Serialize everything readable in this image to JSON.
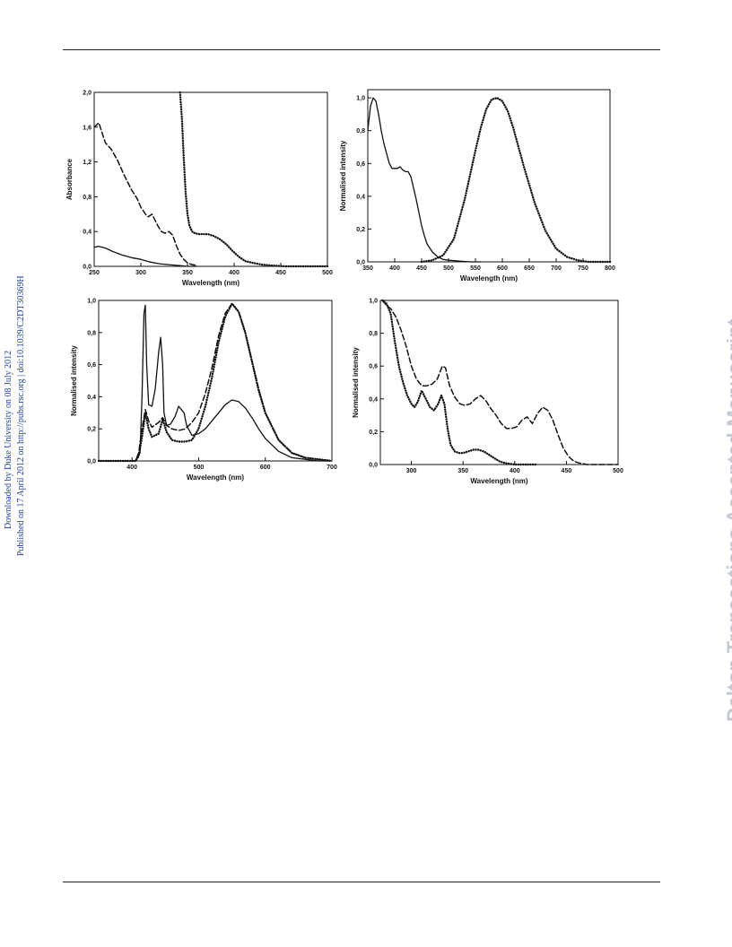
{
  "side_notes": {
    "line1": "Downloaded by Duke University on 08 July 2012",
    "line2": "Published on 17 April 2012 on http://pubs.rsc.org | doi:10.1039/C2DT30369H"
  },
  "watermark": "Dalton Transactions Accepted Manuscript",
  "chart_data": [
    {
      "type": "line",
      "xlabel": "Wavelength (nm)",
      "ylabel": "Absorbance",
      "xlim": [
        250,
        500
      ],
      "ylim": [
        0,
        2.0
      ],
      "xticks": [
        250,
        300,
        350,
        400,
        450,
        500
      ],
      "yticks": [
        0.0,
        0.4,
        0.8,
        1.2,
        1.6,
        2.0
      ],
      "yticklabels": [
        "0,0",
        "0,4",
        "0,8",
        "1,2",
        "1,6",
        "2,0"
      ],
      "grid": false,
      "series": [
        {
          "style": "dashed",
          "x": [
            250,
            255,
            258,
            262,
            268,
            275,
            282,
            290,
            296,
            300,
            305,
            308,
            312,
            318,
            322,
            326,
            330,
            334,
            338,
            342,
            346,
            350,
            355,
            360
          ],
          "y": [
            1.6,
            1.65,
            1.55,
            1.42,
            1.35,
            1.22,
            1.05,
            0.88,
            0.78,
            0.68,
            0.6,
            0.57,
            0.6,
            0.47,
            0.4,
            0.38,
            0.4,
            0.36,
            0.24,
            0.14,
            0.08,
            0.04,
            0.02,
            0.01
          ]
        },
        {
          "style": "solid",
          "x": [
            250,
            255,
            262,
            270,
            280,
            290,
            300,
            310,
            320,
            330,
            340,
            350,
            360
          ],
          "y": [
            0.22,
            0.23,
            0.21,
            0.17,
            0.13,
            0.1,
            0.08,
            0.05,
            0.03,
            0.02,
            0.01,
            0.0,
            0.0
          ]
        },
        {
          "style": "dotted",
          "x": [
            342,
            344,
            346,
            348,
            350,
            352,
            355,
            358,
            362,
            366,
            372,
            378,
            385,
            392,
            398,
            405,
            412,
            420,
            430,
            440,
            455,
            470,
            485,
            500
          ],
          "y": [
            2.0,
            1.7,
            1.25,
            0.85,
            0.6,
            0.47,
            0.4,
            0.38,
            0.37,
            0.37,
            0.37,
            0.35,
            0.31,
            0.25,
            0.18,
            0.11,
            0.06,
            0.04,
            0.02,
            0.01,
            0.0,
            0.0,
            0.0,
            0.0
          ]
        }
      ]
    },
    {
      "type": "line",
      "xlabel": "Wavelength (nm)",
      "ylabel": "Normalised intensity",
      "xlim": [
        350,
        800
      ],
      "ylim": [
        0,
        1.05
      ],
      "xticks": [
        350,
        400,
        450,
        500,
        550,
        600,
        650,
        700,
        750,
        800
      ],
      "yticks": [
        0.0,
        0.2,
        0.4,
        0.6,
        0.8,
        1.0
      ],
      "yticklabels": [
        "0,0",
        "0,2",
        "0,4",
        "0,6",
        "0,8",
        "1,0"
      ],
      "grid": false,
      "series": [
        {
          "style": "solid",
          "x": [
            350,
            355,
            360,
            365,
            370,
            375,
            380,
            385,
            390,
            395,
            400,
            405,
            410,
            415,
            420,
            425,
            430,
            435,
            440,
            445,
            450,
            455,
            460,
            470,
            480,
            490,
            500,
            520,
            540,
            560
          ],
          "y": [
            0.8,
            0.95,
            1.0,
            0.98,
            0.9,
            0.8,
            0.72,
            0.66,
            0.6,
            0.57,
            0.57,
            0.57,
            0.58,
            0.56,
            0.55,
            0.55,
            0.52,
            0.45,
            0.38,
            0.3,
            0.22,
            0.16,
            0.11,
            0.06,
            0.03,
            0.015,
            0.01,
            0.005,
            0.0,
            0.0
          ]
        },
        {
          "style": "dotted",
          "x": [
            450,
            470,
            490,
            510,
            530,
            550,
            560,
            570,
            580,
            590,
            600,
            610,
            620,
            640,
            660,
            680,
            700,
            720,
            740,
            760,
            780,
            800
          ],
          "y": [
            0.0,
            0.01,
            0.04,
            0.14,
            0.38,
            0.68,
            0.82,
            0.93,
            0.99,
            1.0,
            0.98,
            0.92,
            0.82,
            0.58,
            0.36,
            0.19,
            0.08,
            0.03,
            0.01,
            0.0,
            0.0,
            0.0
          ]
        }
      ]
    },
    {
      "type": "line",
      "xlabel": "Wavelength (nm)",
      "ylabel": "Normalised intensity",
      "xlim": [
        350,
        700
      ],
      "ylim": [
        0,
        1.0
      ],
      "xticks": [
        400,
        500,
        600,
        700
      ],
      "yticks": [
        0.0,
        0.2,
        0.4,
        0.6,
        0.8,
        1.0
      ],
      "yticklabels": [
        "0,0",
        "0,2",
        "0,4",
        "0,6",
        "0,8",
        "1,0"
      ],
      "grid": false,
      "series": [
        {
          "style": "solid",
          "x": [
            350,
            405,
            412,
            415,
            418,
            420,
            422,
            425,
            430,
            435,
            440,
            443,
            446,
            448,
            452,
            458,
            465,
            470,
            474,
            478,
            482,
            490,
            500,
            510,
            520,
            530,
            540,
            550,
            560,
            570,
            580,
            590,
            600,
            620,
            640,
            660,
            680,
            700
          ],
          "y": [
            0.0,
            0.0,
            0.05,
            0.4,
            0.92,
            0.97,
            0.6,
            0.35,
            0.34,
            0.45,
            0.68,
            0.77,
            0.6,
            0.3,
            0.22,
            0.23,
            0.28,
            0.34,
            0.32,
            0.3,
            0.22,
            0.16,
            0.17,
            0.2,
            0.25,
            0.3,
            0.35,
            0.38,
            0.37,
            0.33,
            0.27,
            0.2,
            0.14,
            0.06,
            0.02,
            0.01,
            0.0,
            0.0
          ]
        },
        {
          "style": "dashed",
          "x": [
            350,
            405,
            410,
            415,
            420,
            425,
            430,
            440,
            446,
            452,
            460,
            470,
            480,
            490,
            500,
            510,
            520,
            530,
            540,
            550,
            560,
            570,
            580,
            590,
            600,
            620,
            640,
            660,
            680,
            700
          ],
          "y": [
            0.0,
            0.0,
            0.05,
            0.2,
            0.32,
            0.25,
            0.21,
            0.24,
            0.27,
            0.22,
            0.2,
            0.19,
            0.2,
            0.24,
            0.3,
            0.42,
            0.58,
            0.78,
            0.92,
            0.98,
            0.93,
            0.8,
            0.62,
            0.45,
            0.3,
            0.13,
            0.05,
            0.02,
            0.01,
            0.0
          ]
        },
        {
          "style": "dotted",
          "x": [
            350,
            405,
            410,
            415,
            420,
            425,
            430,
            440,
            446,
            452,
            460,
            470,
            480,
            490,
            500,
            510,
            520,
            530,
            540,
            550,
            560,
            570,
            580,
            590,
            600,
            620,
            640,
            660,
            680,
            700
          ],
          "y": [
            0.0,
            0.0,
            0.03,
            0.15,
            0.3,
            0.2,
            0.15,
            0.17,
            0.26,
            0.18,
            0.13,
            0.12,
            0.12,
            0.13,
            0.2,
            0.34,
            0.52,
            0.74,
            0.9,
            0.98,
            0.93,
            0.8,
            0.62,
            0.44,
            0.3,
            0.13,
            0.05,
            0.02,
            0.01,
            0.0
          ]
        }
      ]
    },
    {
      "type": "line",
      "xlabel": "Wavelength (nm)",
      "ylabel": "Normalised intensity",
      "xlim": [
        270,
        500
      ],
      "ylim": [
        0,
        1.0
      ],
      "xticks": [
        300,
        350,
        400,
        450,
        500
      ],
      "yticks": [
        0.0,
        0.2,
        0.4,
        0.6,
        0.8,
        1.0
      ],
      "yticklabels": [
        "0,0",
        "0,2",
        "0,4",
        "0,6",
        "0,8",
        "1,0"
      ],
      "grid": false,
      "series": [
        {
          "style": "dashed",
          "x": [
            272,
            276,
            280,
            285,
            290,
            295,
            300,
            305,
            310,
            315,
            320,
            325,
            330,
            333,
            337,
            342,
            347,
            352,
            357,
            362,
            367,
            372,
            377,
            382,
            387,
            392,
            397,
            402,
            407,
            412,
            417,
            422,
            427,
            432,
            437,
            442,
            447,
            452,
            457,
            462,
            470,
            480,
            500
          ],
          "y": [
            1.0,
            0.97,
            0.95,
            0.9,
            0.82,
            0.72,
            0.6,
            0.52,
            0.48,
            0.48,
            0.49,
            0.52,
            0.6,
            0.59,
            0.48,
            0.41,
            0.37,
            0.36,
            0.37,
            0.4,
            0.42,
            0.39,
            0.34,
            0.3,
            0.25,
            0.22,
            0.22,
            0.23,
            0.27,
            0.29,
            0.25,
            0.31,
            0.35,
            0.33,
            0.27,
            0.18,
            0.1,
            0.05,
            0.02,
            0.01,
            0.0,
            0.0,
            0.0
          ]
        },
        {
          "style": "dotted",
          "x": [
            272,
            276,
            280,
            284,
            288,
            292,
            296,
            300,
            303,
            306,
            310,
            314,
            318,
            322,
            326,
            329,
            332,
            335,
            338,
            342,
            346,
            350,
            355,
            360,
            365,
            370,
            375,
            380,
            385,
            390,
            395,
            400,
            405,
            410,
            415,
            420
          ],
          "y": [
            1.0,
            0.98,
            0.92,
            0.75,
            0.6,
            0.5,
            0.42,
            0.37,
            0.35,
            0.38,
            0.45,
            0.4,
            0.35,
            0.33,
            0.37,
            0.42,
            0.37,
            0.22,
            0.12,
            0.08,
            0.07,
            0.07,
            0.08,
            0.09,
            0.09,
            0.08,
            0.06,
            0.04,
            0.02,
            0.01,
            0.005,
            0.0,
            0.0,
            0.0,
            0.0,
            0.0
          ]
        }
      ]
    }
  ]
}
